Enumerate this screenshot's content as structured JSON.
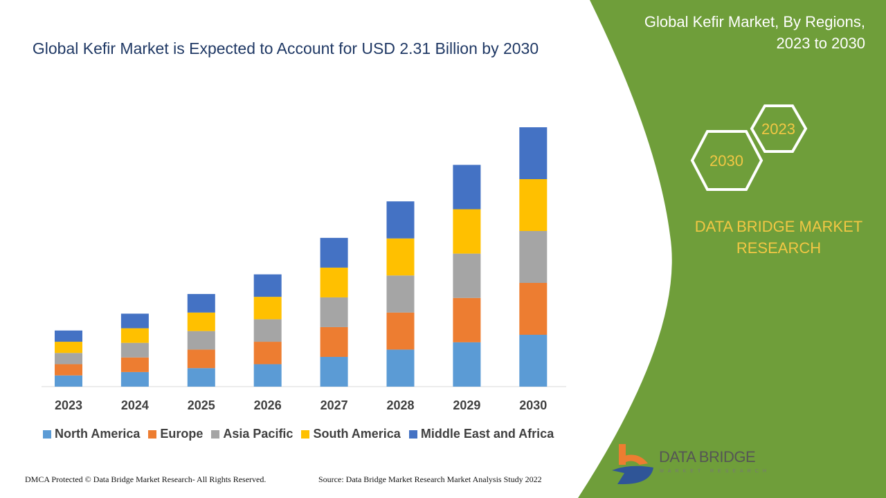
{
  "title": "Global Kefir Market is Expected to Account for USD 2.31 Billion by 2030",
  "side": {
    "title_line1": "Global Kefir Market, By Regions,",
    "title_line2": "2023 to 2030",
    "hex_top": "2023",
    "hex_bottom": "2030",
    "brand_line1": "DATA BRIDGE MARKET",
    "brand_line2": "RESEARCH",
    "logo_text": "DATA BRIDGE",
    "logo_sub": "MARKET RESEARCH",
    "bg_color": "#6f9e3a"
  },
  "footer": {
    "left": "DMCA Protected © Data Bridge Market Research- All Rights Reserved.",
    "right": "Source: Data Bridge Market Research Market Analysis Study 2022"
  },
  "chart_data": {
    "type": "bar",
    "stacked": true,
    "title": "Global Kefir Market is Expected to Account for USD 2.31 Billion by 2030",
    "categories": [
      "2023",
      "2024",
      "2025",
      "2026",
      "2027",
      "2028",
      "2029",
      "2030"
    ],
    "series": [
      {
        "name": "North America",
        "color": "#5b9bd5",
        "values": [
          0.1,
          0.13,
          0.165,
          0.2,
          0.265,
          0.33,
          0.395,
          0.462
        ]
      },
      {
        "name": "Europe",
        "color": "#ed7d31",
        "values": [
          0.1,
          0.13,
          0.165,
          0.2,
          0.265,
          0.33,
          0.395,
          0.462
        ]
      },
      {
        "name": "Asia Pacific",
        "color": "#a5a5a5",
        "values": [
          0.1,
          0.13,
          0.165,
          0.2,
          0.265,
          0.33,
          0.395,
          0.462
        ]
      },
      {
        "name": "South America",
        "color": "#ffc000",
        "values": [
          0.1,
          0.13,
          0.165,
          0.2,
          0.265,
          0.33,
          0.395,
          0.462
        ]
      },
      {
        "name": "Middle East and Africa",
        "color": "#4472c4",
        "values": [
          0.1,
          0.13,
          0.165,
          0.2,
          0.265,
          0.33,
          0.395,
          0.462
        ]
      }
    ],
    "ylim": [
      0,
      2.31
    ],
    "grid": false,
    "legend": "bottom",
    "y_axis_visible": false
  }
}
